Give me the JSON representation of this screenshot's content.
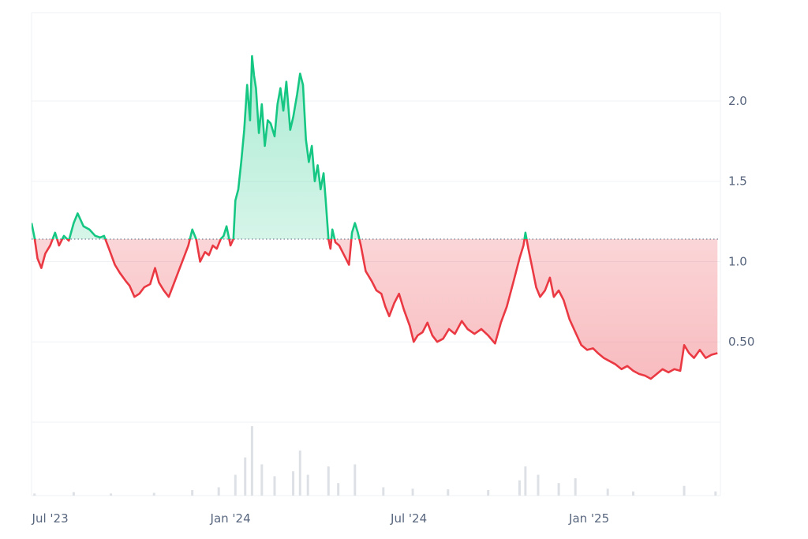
{
  "chart_data": {
    "type": "area",
    "title": "",
    "xlabel": "",
    "ylabel": "",
    "baseline": 1.14,
    "ylim": [
      0,
      2.55
    ],
    "xlim": [
      "2023-06-12",
      "2025-05-15"
    ],
    "x_ticks": [
      {
        "date": "2023-07-01",
        "label": "Jul '23"
      },
      {
        "date": "2024-01-01",
        "label": "Jan '24"
      },
      {
        "date": "2024-07-01",
        "label": "Jul '24"
      },
      {
        "date": "2025-01-01",
        "label": "Jan '25"
      }
    ],
    "y_ticks": [
      {
        "value": 0.5,
        "label": "0.50"
      },
      {
        "value": 1.0,
        "label": "1.0"
      },
      {
        "value": 1.5,
        "label": "1.5"
      },
      {
        "value": 2.0,
        "label": "2.0"
      }
    ],
    "colors": {
      "above": "#16c784",
      "below": "#ea3943",
      "grid": "#eff2f5",
      "axis": "#58667e",
      "volume": "#dde1e6"
    },
    "series": [
      {
        "values": [
          [
            "2023-06-12",
            1.24
          ],
          [
            "2023-06-15",
            1.15
          ],
          [
            "2023-06-18",
            1.02
          ],
          [
            "2023-06-22",
            0.96
          ],
          [
            "2023-06-26",
            1.05
          ],
          [
            "2023-07-01",
            1.1
          ],
          [
            "2023-07-06",
            1.18
          ],
          [
            "2023-07-10",
            1.1
          ],
          [
            "2023-07-15",
            1.16
          ],
          [
            "2023-07-20",
            1.13
          ],
          [
            "2023-07-25",
            1.24
          ],
          [
            "2023-07-29",
            1.3
          ],
          [
            "2023-08-04",
            1.22
          ],
          [
            "2023-08-10",
            1.2
          ],
          [
            "2023-08-16",
            1.16
          ],
          [
            "2023-08-21",
            1.15
          ],
          [
            "2023-08-25",
            1.16
          ],
          [
            "2023-08-30",
            1.08
          ],
          [
            "2023-09-05",
            0.98
          ],
          [
            "2023-09-10",
            0.93
          ],
          [
            "2023-09-16",
            0.88
          ],
          [
            "2023-09-20",
            0.85
          ],
          [
            "2023-09-25",
            0.78
          ],
          [
            "2023-09-30",
            0.8
          ],
          [
            "2023-10-05",
            0.84
          ],
          [
            "2023-10-11",
            0.86
          ],
          [
            "2023-10-16",
            0.96
          ],
          [
            "2023-10-20",
            0.87
          ],
          [
            "2023-10-25",
            0.82
          ],
          [
            "2023-10-30",
            0.78
          ],
          [
            "2023-11-04",
            0.86
          ],
          [
            "2023-11-09",
            0.94
          ],
          [
            "2023-11-14",
            1.02
          ],
          [
            "2023-11-19",
            1.1
          ],
          [
            "2023-11-23",
            1.2
          ],
          [
            "2023-11-27",
            1.14
          ],
          [
            "2023-12-01",
            1.0
          ],
          [
            "2023-12-06",
            1.06
          ],
          [
            "2023-12-10",
            1.04
          ],
          [
            "2023-12-14",
            1.1
          ],
          [
            "2023-12-18",
            1.08
          ],
          [
            "2023-12-22",
            1.14
          ],
          [
            "2023-12-25",
            1.16
          ],
          [
            "2023-12-28",
            1.22
          ],
          [
            "2024-01-01",
            1.1
          ],
          [
            "2024-01-04",
            1.14
          ],
          [
            "2024-01-06",
            1.38
          ],
          [
            "2024-01-09",
            1.45
          ],
          [
            "2024-01-12",
            1.62
          ],
          [
            "2024-01-15",
            1.82
          ],
          [
            "2024-01-18",
            2.1
          ],
          [
            "2024-01-21",
            1.88
          ],
          [
            "2024-01-23",
            2.28
          ],
          [
            "2024-01-25",
            2.16
          ],
          [
            "2024-01-27",
            2.08
          ],
          [
            "2024-01-30",
            1.8
          ],
          [
            "2024-02-02",
            1.98
          ],
          [
            "2024-02-05",
            1.72
          ],
          [
            "2024-02-08",
            1.88
          ],
          [
            "2024-02-11",
            1.86
          ],
          [
            "2024-02-15",
            1.78
          ],
          [
            "2024-02-18",
            1.98
          ],
          [
            "2024-02-21",
            2.08
          ],
          [
            "2024-02-24",
            1.94
          ],
          [
            "2024-02-27",
            2.12
          ],
          [
            "2024-03-02",
            1.82
          ],
          [
            "2024-03-05",
            1.9
          ],
          [
            "2024-03-09",
            2.04
          ],
          [
            "2024-03-12",
            2.17
          ],
          [
            "2024-03-15",
            2.1
          ],
          [
            "2024-03-18",
            1.76
          ],
          [
            "2024-03-21",
            1.62
          ],
          [
            "2024-03-24",
            1.72
          ],
          [
            "2024-03-27",
            1.5
          ],
          [
            "2024-03-30",
            1.6
          ],
          [
            "2024-04-02",
            1.45
          ],
          [
            "2024-04-05",
            1.55
          ],
          [
            "2024-04-07",
            1.4
          ],
          [
            "2024-04-10",
            1.14
          ],
          [
            "2024-04-12",
            1.08
          ],
          [
            "2024-04-14",
            1.2
          ],
          [
            "2024-04-17",
            1.12
          ],
          [
            "2024-04-21",
            1.1
          ],
          [
            "2024-04-26",
            1.04
          ],
          [
            "2024-05-01",
            0.98
          ],
          [
            "2024-05-04",
            1.18
          ],
          [
            "2024-05-07",
            1.24
          ],
          [
            "2024-05-10",
            1.18
          ],
          [
            "2024-05-13",
            1.1
          ],
          [
            "2024-05-18",
            0.94
          ],
          [
            "2024-05-24",
            0.88
          ],
          [
            "2024-05-29",
            0.82
          ],
          [
            "2024-06-03",
            0.8
          ],
          [
            "2024-06-07",
            0.72
          ],
          [
            "2024-06-11",
            0.66
          ],
          [
            "2024-06-16",
            0.74
          ],
          [
            "2024-06-21",
            0.8
          ],
          [
            "2024-06-26",
            0.7
          ],
          [
            "2024-07-02",
            0.6
          ],
          [
            "2024-07-06",
            0.5
          ],
          [
            "2024-07-10",
            0.54
          ],
          [
            "2024-07-15",
            0.56
          ],
          [
            "2024-07-20",
            0.62
          ],
          [
            "2024-07-25",
            0.54
          ],
          [
            "2024-07-30",
            0.5
          ],
          [
            "2024-08-05",
            0.52
          ],
          [
            "2024-08-11",
            0.58
          ],
          [
            "2024-08-17",
            0.55
          ],
          [
            "2024-08-24",
            0.63
          ],
          [
            "2024-08-30",
            0.58
          ],
          [
            "2024-09-06",
            0.55
          ],
          [
            "2024-09-13",
            0.58
          ],
          [
            "2024-09-20",
            0.54
          ],
          [
            "2024-09-27",
            0.49
          ],
          [
            "2024-10-03",
            0.62
          ],
          [
            "2024-10-09",
            0.72
          ],
          [
            "2024-10-16",
            0.88
          ],
          [
            "2024-10-22",
            1.02
          ],
          [
            "2024-10-26",
            1.1
          ],
          [
            "2024-10-28",
            1.18
          ],
          [
            "2024-10-31",
            1.08
          ],
          [
            "2024-11-04",
            0.96
          ],
          [
            "2024-11-08",
            0.84
          ],
          [
            "2024-11-12",
            0.78
          ],
          [
            "2024-11-17",
            0.82
          ],
          [
            "2024-11-22",
            0.9
          ],
          [
            "2024-11-26",
            0.78
          ],
          [
            "2024-12-01",
            0.82
          ],
          [
            "2024-12-06",
            0.76
          ],
          [
            "2024-12-12",
            0.64
          ],
          [
            "2024-12-18",
            0.56
          ],
          [
            "2024-12-24",
            0.48
          ],
          [
            "2024-12-30",
            0.45
          ],
          [
            "2025-01-05",
            0.46
          ],
          [
            "2025-01-10",
            0.43
          ],
          [
            "2025-01-16",
            0.4
          ],
          [
            "2025-01-22",
            0.38
          ],
          [
            "2025-01-28",
            0.36
          ],
          [
            "2025-02-03",
            0.33
          ],
          [
            "2025-02-09",
            0.35
          ],
          [
            "2025-02-15",
            0.32
          ],
          [
            "2025-02-21",
            0.3
          ],
          [
            "2025-02-27",
            0.29
          ],
          [
            "2025-03-05",
            0.27
          ],
          [
            "2025-03-11",
            0.3
          ],
          [
            "2025-03-17",
            0.33
          ],
          [
            "2025-03-23",
            0.31
          ],
          [
            "2025-03-29",
            0.33
          ],
          [
            "2025-04-04",
            0.32
          ],
          [
            "2025-04-08",
            0.48
          ],
          [
            "2025-04-13",
            0.43
          ],
          [
            "2025-04-18",
            0.4
          ],
          [
            "2025-04-24",
            0.45
          ],
          [
            "2025-04-30",
            0.4
          ],
          [
            "2025-05-06",
            0.42
          ],
          [
            "2025-05-12",
            0.43
          ]
        ]
      }
    ],
    "volume": [
      [
        "2023-06-15",
        3
      ],
      [
        "2023-07-25",
        5
      ],
      [
        "2023-09-01",
        3
      ],
      [
        "2023-10-15",
        4
      ],
      [
        "2023-11-23",
        8
      ],
      [
        "2023-12-20",
        12
      ],
      [
        "2024-01-06",
        30
      ],
      [
        "2024-01-16",
        55
      ],
      [
        "2024-01-23",
        100
      ],
      [
        "2024-02-02",
        45
      ],
      [
        "2024-02-15",
        28
      ],
      [
        "2024-03-05",
        35
      ],
      [
        "2024-03-12",
        65
      ],
      [
        "2024-03-20",
        30
      ],
      [
        "2024-04-10",
        42
      ],
      [
        "2024-04-20",
        18
      ],
      [
        "2024-05-07",
        45
      ],
      [
        "2024-06-05",
        12
      ],
      [
        "2024-07-05",
        10
      ],
      [
        "2024-08-10",
        9
      ],
      [
        "2024-09-20",
        8
      ],
      [
        "2024-10-22",
        22
      ],
      [
        "2024-10-28",
        42
      ],
      [
        "2024-11-10",
        30
      ],
      [
        "2024-12-01",
        18
      ],
      [
        "2024-12-18",
        25
      ],
      [
        "2025-01-20",
        10
      ],
      [
        "2025-02-15",
        6
      ],
      [
        "2025-04-08",
        14
      ],
      [
        "2025-05-10",
        6
      ]
    ]
  }
}
